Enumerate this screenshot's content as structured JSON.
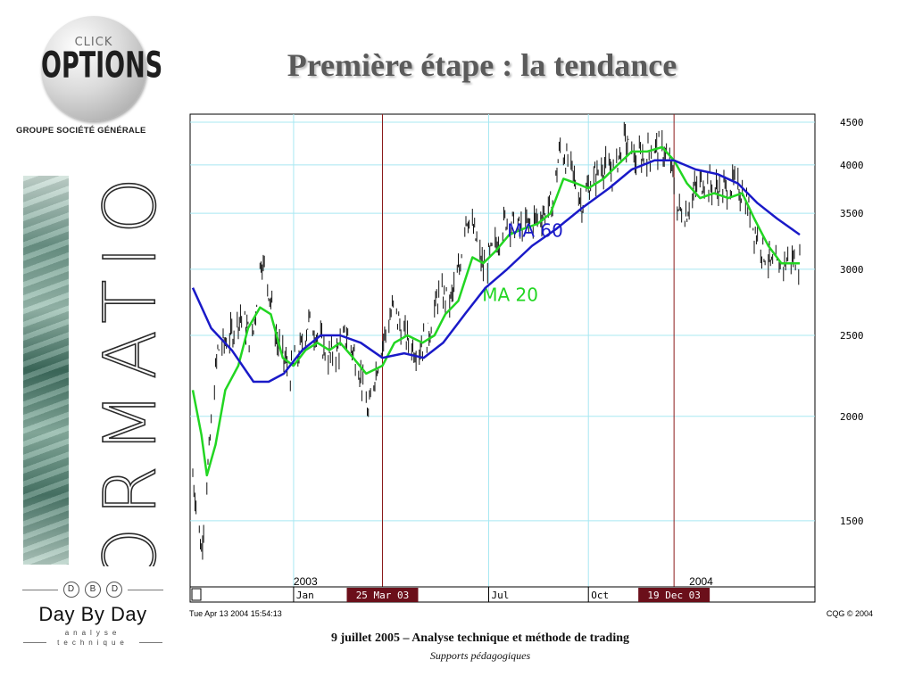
{
  "logo": {
    "click": "CLICK",
    "options": "OPTIONS",
    "group": "GROUPE SOCIÉTÉ GÉNÉRALE"
  },
  "title": "Première étape : la tendance",
  "side_text": "FORMATION",
  "daybyday": {
    "letters": [
      "D",
      "B",
      "D"
    ],
    "name": "Day By Day",
    "sub1": "analyse",
    "sub2": "technique"
  },
  "footer": {
    "main": "9 juillet 2005 – Analyse technique et méthode de trading",
    "sub": "Supports pédagogiques"
  },
  "colors": {
    "ma20": "#22d622",
    "ma60": "#1a1ac8",
    "grid": "#a8e8f2",
    "marker_line": "#8b1a1a",
    "marker_bg": "#6b0f1a",
    "bars": "#111111"
  },
  "chart_data": {
    "type": "line",
    "y_scale": "log",
    "ylim": [
      1250,
      4600
    ],
    "y_ticks": [
      "4500",
      "4000",
      "3500",
      "3000",
      "2500",
      "2000",
      "1500"
    ],
    "y_tick_values": [
      4500,
      4000,
      3500,
      3000,
      2500,
      2000,
      1500
    ],
    "xlim": [
      "2002-10-01",
      "2004-04-13"
    ],
    "x_tick_labels": [
      {
        "label": "Jan",
        "date": "2003-01-02"
      },
      {
        "label": "Jul",
        "date": "2003-07-01"
      },
      {
        "label": "Oct",
        "date": "2003-10-01"
      }
    ],
    "year_labels": [
      {
        "label": "2003",
        "date": "2003-01-02"
      },
      {
        "label": "2004",
        "date": "2004-01-02"
      }
    ],
    "markers": [
      {
        "label": "25 Mar 03",
        "date": "2003-03-25"
      },
      {
        "label": "19 Dec 03",
        "date": "2003-12-19"
      }
    ],
    "price_bars_description": "daily high/low bars",
    "price_path": [
      {
        "date": "2002-10-01",
        "value": 1700
      },
      {
        "date": "2002-10-09",
        "value": 1380
      },
      {
        "date": "2002-10-16",
        "value": 1800
      },
      {
        "date": "2002-10-24",
        "value": 2400
      },
      {
        "date": "2002-11-05",
        "value": 2500
      },
      {
        "date": "2002-11-14",
        "value": 2650
      },
      {
        "date": "2002-11-25",
        "value": 2450
      },
      {
        "date": "2002-12-03",
        "value": 3100
      },
      {
        "date": "2002-12-09",
        "value": 2900
      },
      {
        "date": "2002-12-18",
        "value": 2450
      },
      {
        "date": "2002-12-30",
        "value": 2250
      },
      {
        "date": "2003-01-08",
        "value": 2400
      },
      {
        "date": "2003-01-16",
        "value": 2600
      },
      {
        "date": "2003-01-24",
        "value": 2500
      },
      {
        "date": "2003-02-03",
        "value": 2350
      },
      {
        "date": "2003-02-12",
        "value": 2400
      },
      {
        "date": "2003-02-20",
        "value": 2500
      },
      {
        "date": "2003-03-03",
        "value": 2300
      },
      {
        "date": "2003-03-12",
        "value": 2000
      },
      {
        "date": "2003-03-18",
        "value": 2250
      },
      {
        "date": "2003-03-25",
        "value": 2450
      },
      {
        "date": "2003-04-04",
        "value": 2700
      },
      {
        "date": "2003-04-14",
        "value": 2500
      },
      {
        "date": "2003-04-25",
        "value": 2400
      },
      {
        "date": "2003-05-06",
        "value": 2500
      },
      {
        "date": "2003-05-16",
        "value": 2800
      },
      {
        "date": "2003-05-27",
        "value": 2750
      },
      {
        "date": "2003-06-04",
        "value": 3000
      },
      {
        "date": "2003-06-10",
        "value": 3500
      },
      {
        "date": "2003-06-18",
        "value": 3300
      },
      {
        "date": "2003-06-26",
        "value": 3000
      },
      {
        "date": "2003-07-07",
        "value": 3200
      },
      {
        "date": "2003-07-17",
        "value": 3450
      },
      {
        "date": "2003-07-29",
        "value": 3350
      },
      {
        "date": "2003-08-08",
        "value": 3400
      },
      {
        "date": "2003-08-20",
        "value": 3500
      },
      {
        "date": "2003-08-29",
        "value": 3600
      },
      {
        "date": "2003-09-05",
        "value": 4200
      },
      {
        "date": "2003-09-15",
        "value": 3950
      },
      {
        "date": "2003-09-25",
        "value": 3600
      },
      {
        "date": "2003-10-03",
        "value": 3800
      },
      {
        "date": "2003-10-14",
        "value": 4000
      },
      {
        "date": "2003-10-24",
        "value": 3900
      },
      {
        "date": "2003-11-03",
        "value": 4300
      },
      {
        "date": "2003-11-12",
        "value": 4050
      },
      {
        "date": "2003-11-21",
        "value": 4100
      },
      {
        "date": "2003-12-02",
        "value": 4200
      },
      {
        "date": "2003-12-10",
        "value": 4150
      },
      {
        "date": "2003-12-17",
        "value": 3950
      },
      {
        "date": "2003-12-22",
        "value": 3550
      },
      {
        "date": "2003-12-30",
        "value": 3500
      },
      {
        "date": "2004-01-08",
        "value": 3750
      },
      {
        "date": "2004-01-16",
        "value": 3850
      },
      {
        "date": "2004-01-26",
        "value": 3750
      },
      {
        "date": "2004-02-05",
        "value": 3750
      },
      {
        "date": "2004-02-13",
        "value": 3800
      },
      {
        "date": "2004-02-23",
        "value": 3650
      },
      {
        "date": "2004-03-02",
        "value": 3350
      },
      {
        "date": "2004-03-11",
        "value": 3150
      },
      {
        "date": "2004-03-19",
        "value": 3000
      },
      {
        "date": "2004-03-29",
        "value": 3050
      },
      {
        "date": "2004-04-05",
        "value": 3100
      },
      {
        "date": "2004-04-13",
        "value": 3050
      }
    ],
    "series": [
      {
        "name": "MA 20",
        "label": "MA 20",
        "color": "#22d622",
        "label_at": {
          "date": "2003-06-25",
          "value": 2750
        },
        "values": [
          {
            "date": "2002-10-01",
            "value": 2150
          },
          {
            "date": "2002-10-09",
            "value": 1900
          },
          {
            "date": "2002-10-14",
            "value": 1700
          },
          {
            "date": "2002-10-22",
            "value": 1850
          },
          {
            "date": "2002-10-31",
            "value": 2150
          },
          {
            "date": "2002-11-12",
            "value": 2300
          },
          {
            "date": "2002-11-21",
            "value": 2550
          },
          {
            "date": "2002-12-02",
            "value": 2700
          },
          {
            "date": "2002-12-12",
            "value": 2650
          },
          {
            "date": "2002-12-23",
            "value": 2350
          },
          {
            "date": "2003-01-02",
            "value": 2300
          },
          {
            "date": "2003-01-13",
            "value": 2400
          },
          {
            "date": "2003-01-24",
            "value": 2450
          },
          {
            "date": "2003-02-04",
            "value": 2400
          },
          {
            "date": "2003-02-14",
            "value": 2450
          },
          {
            "date": "2003-02-26",
            "value": 2350
          },
          {
            "date": "2003-03-10",
            "value": 2250
          },
          {
            "date": "2003-03-25",
            "value": 2300
          },
          {
            "date": "2003-04-05",
            "value": 2450
          },
          {
            "date": "2003-04-17",
            "value": 2500
          },
          {
            "date": "2003-05-01",
            "value": 2450
          },
          {
            "date": "2003-05-12",
            "value": 2500
          },
          {
            "date": "2003-05-22",
            "value": 2650
          },
          {
            "date": "2003-06-03",
            "value": 2750
          },
          {
            "date": "2003-06-16",
            "value": 3100
          },
          {
            "date": "2003-06-26",
            "value": 3050
          },
          {
            "date": "2003-07-07",
            "value": 3150
          },
          {
            "date": "2003-07-20",
            "value": 3300
          },
          {
            "date": "2003-08-01",
            "value": 3350
          },
          {
            "date": "2003-08-15",
            "value": 3400
          },
          {
            "date": "2003-08-27",
            "value": 3500
          },
          {
            "date": "2003-09-08",
            "value": 3850
          },
          {
            "date": "2003-09-20",
            "value": 3800
          },
          {
            "date": "2003-10-01",
            "value": 3750
          },
          {
            "date": "2003-10-15",
            "value": 3850
          },
          {
            "date": "2003-10-28",
            "value": 4000
          },
          {
            "date": "2003-11-10",
            "value": 4150
          },
          {
            "date": "2003-11-24",
            "value": 4150
          },
          {
            "date": "2003-12-08",
            "value": 4200
          },
          {
            "date": "2003-12-19",
            "value": 4050
          },
          {
            "date": "2003-12-31",
            "value": 3800
          },
          {
            "date": "2004-01-12",
            "value": 3650
          },
          {
            "date": "2004-01-25",
            "value": 3700
          },
          {
            "date": "2004-02-07",
            "value": 3650
          },
          {
            "date": "2004-02-20",
            "value": 3700
          },
          {
            "date": "2004-03-02",
            "value": 3450
          },
          {
            "date": "2004-03-15",
            "value": 3200
          },
          {
            "date": "2004-03-27",
            "value": 3050
          },
          {
            "date": "2004-04-13",
            "value": 3050
          }
        ]
      },
      {
        "name": "MA 60",
        "label": "MA 60",
        "color": "#1a1ac8",
        "label_at": {
          "date": "2003-07-18",
          "value": 3280
        },
        "values": [
          {
            "date": "2002-10-01",
            "value": 2850
          },
          {
            "date": "2002-10-18",
            "value": 2550
          },
          {
            "date": "2002-11-06",
            "value": 2400
          },
          {
            "date": "2002-11-26",
            "value": 2200
          },
          {
            "date": "2002-12-10",
            "value": 2200
          },
          {
            "date": "2002-12-24",
            "value": 2250
          },
          {
            "date": "2003-01-10",
            "value": 2400
          },
          {
            "date": "2003-01-27",
            "value": 2500
          },
          {
            "date": "2003-02-14",
            "value": 2500
          },
          {
            "date": "2003-03-05",
            "value": 2450
          },
          {
            "date": "2003-03-25",
            "value": 2350
          },
          {
            "date": "2003-04-14",
            "value": 2380
          },
          {
            "date": "2003-05-02",
            "value": 2350
          },
          {
            "date": "2003-05-20",
            "value": 2450
          },
          {
            "date": "2003-06-09",
            "value": 2650
          },
          {
            "date": "2003-06-28",
            "value": 2850
          },
          {
            "date": "2003-07-18",
            "value": 3000
          },
          {
            "date": "2003-08-10",
            "value": 3200
          },
          {
            "date": "2003-09-01",
            "value": 3350
          },
          {
            "date": "2003-09-25",
            "value": 3550
          },
          {
            "date": "2003-10-20",
            "value": 3750
          },
          {
            "date": "2003-11-10",
            "value": 3950
          },
          {
            "date": "2003-12-01",
            "value": 4050
          },
          {
            "date": "2003-12-19",
            "value": 4050
          },
          {
            "date": "2004-01-08",
            "value": 3950
          },
          {
            "date": "2004-01-28",
            "value": 3900
          },
          {
            "date": "2004-02-16",
            "value": 3800
          },
          {
            "date": "2004-03-05",
            "value": 3600
          },
          {
            "date": "2004-03-23",
            "value": 3450
          },
          {
            "date": "2004-04-13",
            "value": 3300
          }
        ]
      }
    ],
    "timestamp": "Tue Apr 13 2004 15:54:13",
    "copyright": "CQG © 2004"
  }
}
